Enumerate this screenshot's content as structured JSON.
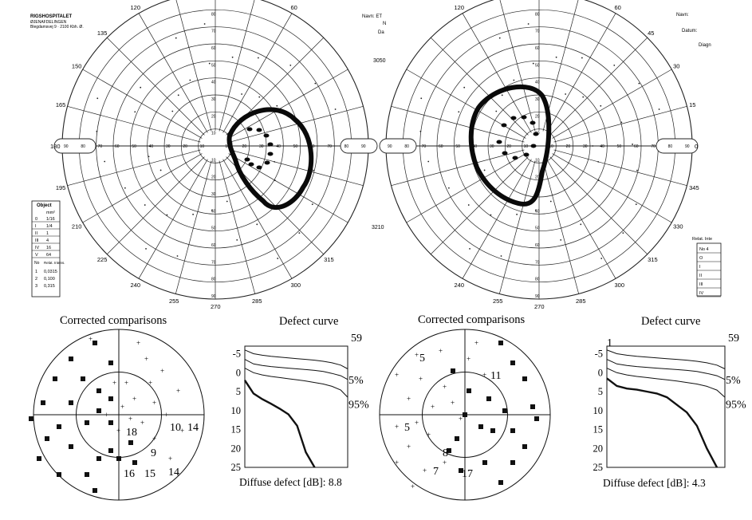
{
  "hospital": {
    "name": "RIGSHOSPITALET",
    "dept": "ØJENAFDELINGEN",
    "address": "Blegdamsvej 9 · 2100 Kbh. Ø."
  },
  "left_top_fields": [
    "Navn: ET",
    "N",
    "Da"
  ],
  "right_top_fields": [
    "Navn:",
    "Datum:",
    "Diagn"
  ],
  "meridian_labels_top": [
    "120",
    "105",
    "90",
    "75",
    "60"
  ],
  "meridian_labels_left": [
    "135",
    "150",
    "165",
    "180",
    "195",
    "210",
    "225"
  ],
  "meridian_labels_bottom": [
    "240",
    "255",
    "270",
    "285",
    "300",
    "315"
  ],
  "meridian_labels_right": [
    "45",
    "30",
    "15",
    "0",
    "345",
    "330"
  ],
  "eccentricity_labels": [
    "90",
    "80",
    "70",
    "60",
    "50",
    "40",
    "30",
    "20",
    "10"
  ],
  "form_codes": [
    "3050",
    "3210"
  ],
  "object_table": {
    "title": "Object",
    "col_header": "mm²",
    "rows": [
      [
        "0",
        "1/16"
      ],
      [
        "I",
        "1/4"
      ],
      [
        "II",
        "1"
      ],
      [
        "III",
        "4"
      ],
      [
        "IV",
        "16"
      ],
      [
        "V",
        "64"
      ]
    ],
    "intens_header": [
      "No",
      "Relat. Intens."
    ],
    "intens_rows": [
      [
        "1",
        "0,0315"
      ],
      [
        "2",
        "0,100"
      ],
      [
        "3",
        "0,315"
      ]
    ]
  },
  "right_relat_table": {
    "title": "Relat. Inte",
    "rows": [
      "No 4",
      "O",
      "I",
      "II",
      "III",
      "IV"
    ]
  },
  "bottom_left": {
    "comparison_title": "Corrected comparisons",
    "comparison_numbers": [
      "18",
      "10",
      "14",
      "9",
      "16",
      "15",
      "14"
    ],
    "defect_title": "Defect curve",
    "defect_top_number": "59",
    "pct5": "5%",
    "pct95": "95%",
    "diffuse": "Diffuse defect [dB]: 8.8"
  },
  "bottom_right": {
    "comparison_title": "Corrected comparisons",
    "comparison_numbers": [
      "5",
      "11",
      "5",
      "8",
      "7",
      "17"
    ],
    "defect_title": "Defect curve",
    "defect_corner_number": "1",
    "defect_top_number": "59",
    "pct5": "5%",
    "pct95": "95%",
    "diffuse": "Diffuse defect [dB]: 4.3"
  },
  "defect_y_ticks": [
    "-5",
    "0",
    "5",
    "10",
    "15",
    "20",
    "25"
  ],
  "chart_data": [
    {
      "type": "line",
      "title": "Defect curve",
      "xlabel": "",
      "ylabel": "",
      "ylim": [
        25,
        -7
      ],
      "y_ticks": [
        -5,
        0,
        5,
        10,
        15,
        20,
        25
      ],
      "x": [
        0,
        5,
        10,
        15,
        20,
        25,
        30,
        35,
        40,
        45,
        50,
        55,
        59
      ],
      "series": [
        {
          "name": "5%",
          "values": [
            -3.5,
            -2.3,
            -1.9,
            -1.6,
            -1.4,
            -1.2,
            -1.0,
            -0.8,
            -0.6,
            -0.3,
            0.2,
            0.8,
            1.8
          ]
        },
        {
          "name": "95%",
          "values": [
            -1.2,
            0.0,
            0.6,
            1.0,
            1.3,
            1.6,
            1.9,
            2.2,
            2.6,
            3.0,
            3.6,
            4.6,
            6.5
          ]
        },
        {
          "name": "",
          "values": [
            -6.0,
            -5.0,
            -4.6,
            -4.3,
            -4.1,
            -3.9,
            -3.7,
            -3.5,
            -3.3,
            -3.0,
            -2.6,
            -2.0,
            -1.0
          ]
        },
        {
          "name": "",
          "values": [
            2.0,
            5.5,
            7.0,
            8.2,
            9.5,
            11.0,
            14.0,
            21.0,
            25.0,
            null,
            null,
            null,
            null
          ]
        }
      ]
    },
    {
      "type": "line",
      "title": "Defect curve",
      "xlabel": "",
      "ylabel": "",
      "ylim": [
        25,
        -7
      ],
      "y_ticks": [
        -5,
        0,
        5,
        10,
        15,
        20,
        25
      ],
      "x": [
        0,
        5,
        10,
        15,
        20,
        25,
        30,
        35,
        40,
        45,
        50,
        55,
        59
      ],
      "series": [
        {
          "name": "5%",
          "values": [
            -3.5,
            -2.3,
            -1.9,
            -1.6,
            -1.4,
            -1.2,
            -1.0,
            -0.8,
            -0.6,
            -0.3,
            0.2,
            0.8,
            1.8
          ]
        },
        {
          "name": "95%",
          "values": [
            -1.2,
            0.0,
            0.6,
            1.0,
            1.3,
            1.6,
            1.9,
            2.2,
            2.6,
            3.0,
            3.6,
            4.6,
            6.5
          ]
        },
        {
          "name": "",
          "values": [
            -6.0,
            -5.0,
            -4.6,
            -4.3,
            -4.1,
            -3.9,
            -3.7,
            -3.5,
            -3.3,
            -3.0,
            -2.6,
            -2.0,
            -1.0
          ]
        },
        {
          "name": "",
          "values": [
            1.5,
            3.5,
            4.2,
            4.5,
            5.0,
            5.5,
            6.5,
            8.5,
            10.5,
            14.0,
            20.0,
            25.0,
            null
          ]
        }
      ]
    }
  ]
}
